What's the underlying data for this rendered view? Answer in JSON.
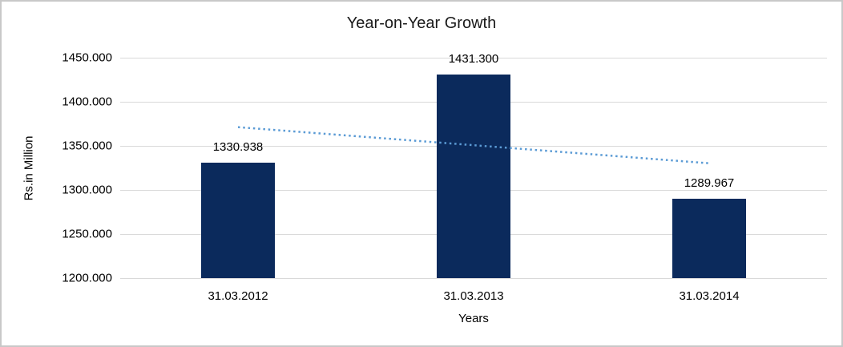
{
  "window": {
    "background": "#ffffff",
    "border_color": "#c8c8c8"
  },
  "chart_data": {
    "type": "bar",
    "title": "Year-on-Year Growth",
    "xlabel": "Years",
    "ylabel": "Rs.in Million",
    "categories": [
      "31.03.2012",
      "31.03.2013",
      "31.03.2014"
    ],
    "values": [
      1330.938,
      1431.3,
      1289.967
    ],
    "data_labels": [
      "1330.938",
      "1431.300",
      "1289.967"
    ],
    "y_ticks": [
      {
        "value": 1200,
        "label": "1200.000"
      },
      {
        "value": 1250,
        "label": "1250.000"
      },
      {
        "value": 1300,
        "label": "1300.000"
      },
      {
        "value": 1350,
        "label": "1350.000"
      },
      {
        "value": 1400,
        "label": "1400.000"
      },
      {
        "value": 1450,
        "label": "1450.000"
      }
    ],
    "ylim": [
      1200,
      1450
    ],
    "grid": true,
    "legend": "none",
    "trendline": {
      "type": "linear",
      "style": "dotted"
    },
    "colors": {
      "bar": "#0b2a5c",
      "trendline": "#5b9bd5",
      "gridline": "#d9d9d9",
      "text": "#000000"
    }
  }
}
